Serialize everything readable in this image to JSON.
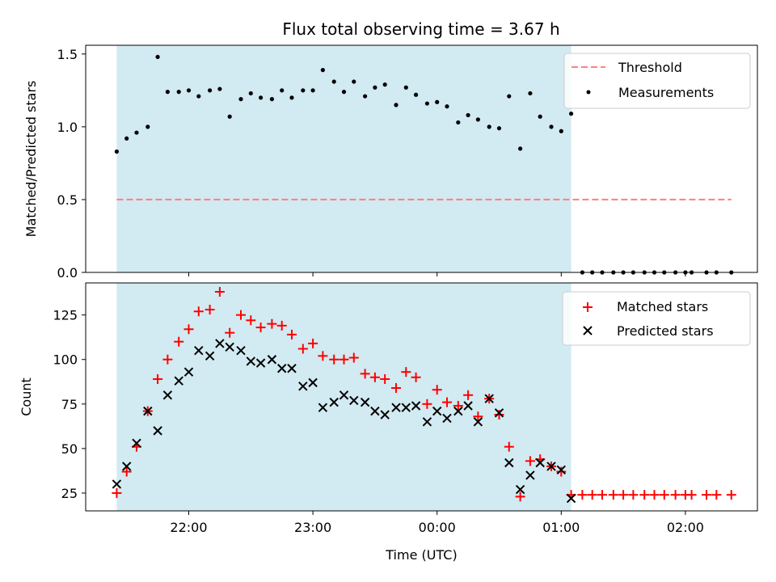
{
  "colors": {
    "span": "#add8e6",
    "threshold": "#ff7f7f",
    "measurement": "#000000",
    "matched": "#ff0000",
    "predicted": "#000000"
  },
  "chart_data": [
    {
      "type": "scatter",
      "title": "Flux total observing time = 3.67 h",
      "xlabel": "",
      "ylabel": "Matched/Predicted stars",
      "ylim": [
        0,
        1.56
      ],
      "yticks": [
        "0.0",
        "0.5",
        "1.0",
        "1.5"
      ],
      "ytick_values": [
        0,
        0.5,
        1.0,
        1.5
      ],
      "xlim_hours": [
        21.17,
        26.58
      ],
      "shaded_span": [
        21.42,
        25.08
      ],
      "threshold": {
        "name": "Threshold",
        "value": 0.5,
        "x_range": [
          21.42,
          26.37
        ]
      },
      "legend_position": "top-right",
      "series": [
        {
          "name": "Measurements",
          "x": [
            21.42,
            21.5,
            21.58,
            21.67,
            21.75,
            21.83,
            21.92,
            22.0,
            22.08,
            22.17,
            22.25,
            22.33,
            22.42,
            22.5,
            22.58,
            22.67,
            22.75,
            22.83,
            22.92,
            23.0,
            23.08,
            23.17,
            23.25,
            23.33,
            23.42,
            23.5,
            23.58,
            23.67,
            23.75,
            23.83,
            23.92,
            24.0,
            24.08,
            24.17,
            24.25,
            24.33,
            24.42,
            24.5,
            24.58,
            24.67,
            24.75,
            24.83,
            24.92,
            25.0,
            25.08,
            25.17,
            25.25,
            25.33,
            25.42,
            25.5,
            25.58,
            25.67,
            25.75,
            25.83,
            25.92,
            26.0,
            26.05,
            26.17,
            26.25,
            26.37
          ],
          "values": [
            0.83,
            0.92,
            0.96,
            1.0,
            1.48,
            1.24,
            1.24,
            1.25,
            1.21,
            1.25,
            1.26,
            1.07,
            1.19,
            1.23,
            1.2,
            1.19,
            1.25,
            1.2,
            1.25,
            1.25,
            1.39,
            1.31,
            1.24,
            1.31,
            1.21,
            1.27,
            1.29,
            1.15,
            1.27,
            1.22,
            1.16,
            1.17,
            1.14,
            1.03,
            1.08,
            1.05,
            1.0,
            0.99,
            1.21,
            0.85,
            1.23,
            1.07,
            1.0,
            0.97,
            1.09,
            0,
            0,
            0,
            0,
            0,
            0,
            0,
            0,
            0,
            0,
            0,
            0,
            0,
            0,
            0
          ]
        }
      ]
    },
    {
      "type": "scatter",
      "xlabel": "Time (UTC)",
      "ylabel": "Count",
      "ylim": [
        15,
        143
      ],
      "yticks": [
        "25",
        "50",
        "75",
        "100",
        "125"
      ],
      "ytick_values": [
        25,
        50,
        75,
        100,
        125
      ],
      "xticks": [
        "22:00",
        "23:00",
        "00:00",
        "01:00",
        "02:00"
      ],
      "xtick_values": [
        22,
        23,
        24,
        25,
        26
      ],
      "xlim_hours": [
        21.17,
        26.58
      ],
      "shaded_span": [
        21.42,
        25.08
      ],
      "legend_position": "top-right",
      "series": [
        {
          "name": "Matched stars",
          "x": [
            21.42,
            21.5,
            21.58,
            21.67,
            21.75,
            21.83,
            21.92,
            22.0,
            22.08,
            22.17,
            22.25,
            22.33,
            22.42,
            22.5,
            22.58,
            22.67,
            22.75,
            22.83,
            22.92,
            23.0,
            23.08,
            23.17,
            23.25,
            23.33,
            23.42,
            23.5,
            23.58,
            23.67,
            23.75,
            23.83,
            23.92,
            24.0,
            24.08,
            24.17,
            24.25,
            24.33,
            24.42,
            24.5,
            24.58,
            24.67,
            24.75,
            24.83,
            24.92,
            25.0,
            25.08,
            25.17,
            25.25,
            25.33,
            25.42,
            25.5,
            25.58,
            25.67,
            25.75,
            25.83,
            25.92,
            26.0,
            26.05,
            26.17,
            26.25,
            26.37
          ],
          "values": [
            25,
            37,
            51,
            71,
            89,
            100,
            110,
            117,
            127,
            128,
            138,
            115,
            125,
            122,
            118,
            120,
            119,
            114,
            106,
            109,
            102,
            100,
            100,
            101,
            92,
            90,
            89,
            84,
            93,
            90,
            75,
            83,
            76,
            74,
            80,
            68,
            78,
            69,
            51,
            23,
            43,
            44,
            40,
            37,
            24,
            24,
            24,
            24,
            24,
            24,
            24,
            24,
            24,
            24,
            24,
            24,
            24,
            24,
            24,
            24
          ]
        },
        {
          "name": "Predicted stars",
          "x": [
            21.42,
            21.5,
            21.58,
            21.67,
            21.75,
            21.83,
            21.92,
            22.0,
            22.08,
            22.17,
            22.25,
            22.33,
            22.42,
            22.5,
            22.58,
            22.67,
            22.75,
            22.83,
            22.92,
            23.0,
            23.08,
            23.17,
            23.25,
            23.33,
            23.42,
            23.5,
            23.58,
            23.67,
            23.75,
            23.83,
            23.92,
            24.0,
            24.08,
            24.17,
            24.25,
            24.33,
            24.42,
            24.5,
            24.58,
            24.67,
            24.75,
            24.83,
            24.92,
            25.0,
            25.08
          ],
          "values": [
            30,
            40,
            53,
            71,
            60,
            80,
            88,
            93,
            105,
            102,
            109,
            107,
            105,
            99,
            98,
            100,
            95,
            95,
            85,
            87,
            73,
            76,
            80,
            77,
            76,
            71,
            69,
            73,
            73,
            74,
            65,
            71,
            67,
            71,
            74,
            65,
            78,
            70,
            42,
            27,
            35,
            42,
            40,
            38,
            22
          ]
        }
      ]
    }
  ]
}
